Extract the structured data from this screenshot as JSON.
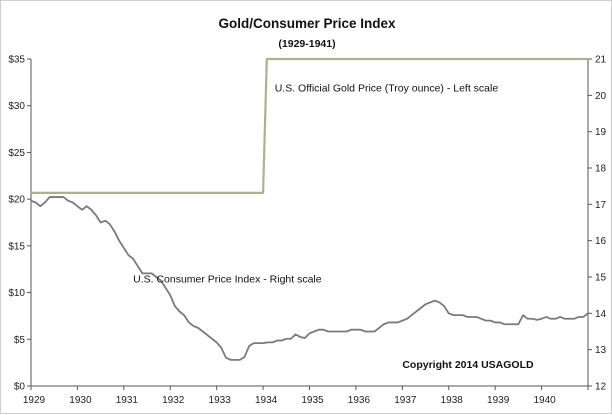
{
  "chart_data": {
    "type": "line",
    "title": "Gold/Consumer Price Index",
    "subtitle": "(1929-1941)",
    "x_categories": [
      "1929",
      "1930",
      "1931",
      "1932",
      "1933",
      "1934",
      "1935",
      "1936",
      "1937",
      "1938",
      "1939",
      "1940"
    ],
    "x_range": [
      1929,
      1941
    ],
    "y_left": {
      "range": [
        0,
        35
      ],
      "ticks": [
        0,
        5,
        10,
        15,
        20,
        25,
        30,
        35
      ],
      "tick_labels": [
        "$0",
        "$5",
        "$10",
        "$15",
        "$20",
        "$25",
        "$30",
        "$35"
      ]
    },
    "y_right": {
      "range": [
        12,
        21
      ],
      "ticks": [
        12,
        13,
        14,
        15,
        16,
        17,
        18,
        19,
        20,
        21
      ],
      "tick_labels": [
        "12",
        "13",
        "14",
        "15",
        "16",
        "17",
        "18",
        "19",
        "20",
        "21"
      ]
    },
    "series": [
      {
        "name": "U.S. Official Gold Price (Troy ounce)",
        "axis": "left",
        "color": "#a9b48e",
        "points": [
          [
            1929.0,
            20.67
          ],
          [
            1934.0,
            20.67
          ],
          [
            1934.08,
            35.0
          ],
          [
            1941.0,
            35.0
          ]
        ]
      },
      {
        "name": "U.S. Consumer Price Index",
        "axis": "right",
        "color": "#7a7a7a",
        "points": [
          [
            1929.0,
            17.1
          ],
          [
            1929.1,
            17.05
          ],
          [
            1929.2,
            16.95
          ],
          [
            1929.3,
            17.05
          ],
          [
            1929.4,
            17.2
          ],
          [
            1929.5,
            17.2
          ],
          [
            1929.6,
            17.2
          ],
          [
            1929.7,
            17.2
          ],
          [
            1929.8,
            17.1
          ],
          [
            1929.9,
            17.05
          ],
          [
            1930.0,
            16.95
          ],
          [
            1930.1,
            16.85
          ],
          [
            1930.2,
            16.95
          ],
          [
            1930.3,
            16.85
          ],
          [
            1930.4,
            16.7
          ],
          [
            1930.5,
            16.5
          ],
          [
            1930.6,
            16.55
          ],
          [
            1930.7,
            16.45
          ],
          [
            1930.8,
            16.25
          ],
          [
            1930.9,
            16.0
          ],
          [
            1931.0,
            15.8
          ],
          [
            1931.1,
            15.6
          ],
          [
            1931.2,
            15.5
          ],
          [
            1931.3,
            15.3
          ],
          [
            1931.4,
            15.1
          ],
          [
            1931.5,
            15.1
          ],
          [
            1931.6,
            15.1
          ],
          [
            1931.7,
            15.0
          ],
          [
            1931.8,
            14.9
          ],
          [
            1931.9,
            14.7
          ],
          [
            1932.0,
            14.5
          ],
          [
            1932.1,
            14.2
          ],
          [
            1932.2,
            14.05
          ],
          [
            1932.3,
            13.95
          ],
          [
            1932.4,
            13.75
          ],
          [
            1932.5,
            13.65
          ],
          [
            1932.6,
            13.6
          ],
          [
            1932.7,
            13.5
          ],
          [
            1932.8,
            13.4
          ],
          [
            1932.9,
            13.3
          ],
          [
            1933.0,
            13.2
          ],
          [
            1933.1,
            13.05
          ],
          [
            1933.2,
            12.78
          ],
          [
            1933.3,
            12.72
          ],
          [
            1933.4,
            12.72
          ],
          [
            1933.5,
            12.72
          ],
          [
            1933.6,
            12.8
          ],
          [
            1933.7,
            13.1
          ],
          [
            1933.8,
            13.18
          ],
          [
            1933.9,
            13.18
          ],
          [
            1934.0,
            13.18
          ],
          [
            1934.1,
            13.2
          ],
          [
            1934.2,
            13.2
          ],
          [
            1934.3,
            13.25
          ],
          [
            1934.4,
            13.25
          ],
          [
            1934.5,
            13.3
          ],
          [
            1934.6,
            13.3
          ],
          [
            1934.7,
            13.42
          ],
          [
            1934.8,
            13.35
          ],
          [
            1934.9,
            13.32
          ],
          [
            1935.0,
            13.45
          ],
          [
            1935.1,
            13.5
          ],
          [
            1935.2,
            13.55
          ],
          [
            1935.3,
            13.55
          ],
          [
            1935.4,
            13.5
          ],
          [
            1935.5,
            13.5
          ],
          [
            1935.6,
            13.5
          ],
          [
            1935.7,
            13.5
          ],
          [
            1935.8,
            13.5
          ],
          [
            1935.9,
            13.55
          ],
          [
            1936.0,
            13.55
          ],
          [
            1936.1,
            13.55
          ],
          [
            1936.2,
            13.5
          ],
          [
            1936.3,
            13.5
          ],
          [
            1936.4,
            13.5
          ],
          [
            1936.5,
            13.6
          ],
          [
            1936.6,
            13.7
          ],
          [
            1936.7,
            13.75
          ],
          [
            1936.8,
            13.75
          ],
          [
            1936.9,
            13.75
          ],
          [
            1937.0,
            13.8
          ],
          [
            1937.1,
            13.85
          ],
          [
            1937.2,
            13.95
          ],
          [
            1937.3,
            14.05
          ],
          [
            1937.4,
            14.15
          ],
          [
            1937.5,
            14.25
          ],
          [
            1937.6,
            14.3
          ],
          [
            1937.7,
            14.35
          ],
          [
            1937.8,
            14.3
          ],
          [
            1937.9,
            14.2
          ],
          [
            1938.0,
            14.0
          ],
          [
            1938.1,
            13.95
          ],
          [
            1938.2,
            13.95
          ],
          [
            1938.3,
            13.95
          ],
          [
            1938.4,
            13.9
          ],
          [
            1938.5,
            13.9
          ],
          [
            1938.6,
            13.9
          ],
          [
            1938.7,
            13.85
          ],
          [
            1938.8,
            13.8
          ],
          [
            1938.9,
            13.8
          ],
          [
            1939.0,
            13.75
          ],
          [
            1939.1,
            13.75
          ],
          [
            1939.2,
            13.7
          ],
          [
            1939.3,
            13.7
          ],
          [
            1939.4,
            13.7
          ],
          [
            1939.5,
            13.7
          ],
          [
            1939.6,
            13.95
          ],
          [
            1939.7,
            13.85
          ],
          [
            1939.8,
            13.85
          ],
          [
            1939.9,
            13.82
          ],
          [
            1940.0,
            13.85
          ],
          [
            1940.1,
            13.9
          ],
          [
            1940.2,
            13.85
          ],
          [
            1940.3,
            13.85
          ],
          [
            1940.4,
            13.9
          ],
          [
            1940.5,
            13.85
          ],
          [
            1940.6,
            13.85
          ],
          [
            1940.7,
            13.85
          ],
          [
            1940.8,
            13.9
          ],
          [
            1940.9,
            13.9
          ],
          [
            1941.0,
            14.0
          ]
        ]
      }
    ],
    "annotations": [
      {
        "id": "gold",
        "text": "U.S. Official Gold Price (Troy ounce) - Left scale",
        "anchor": [
          1934.25,
          31.5
        ],
        "axis": "left"
      },
      {
        "id": "cpi",
        "text": "U.S. Consumer Price Index - Right scale",
        "anchor": [
          1931.2,
          14.85
        ],
        "axis": "right"
      },
      {
        "id": "copyright",
        "text": "Copyright 2014 USAGOLD",
        "anchor": [
          1937.0,
          12.5
        ],
        "axis": "right",
        "bold": true
      }
    ],
    "grid": false,
    "legend": "none"
  }
}
